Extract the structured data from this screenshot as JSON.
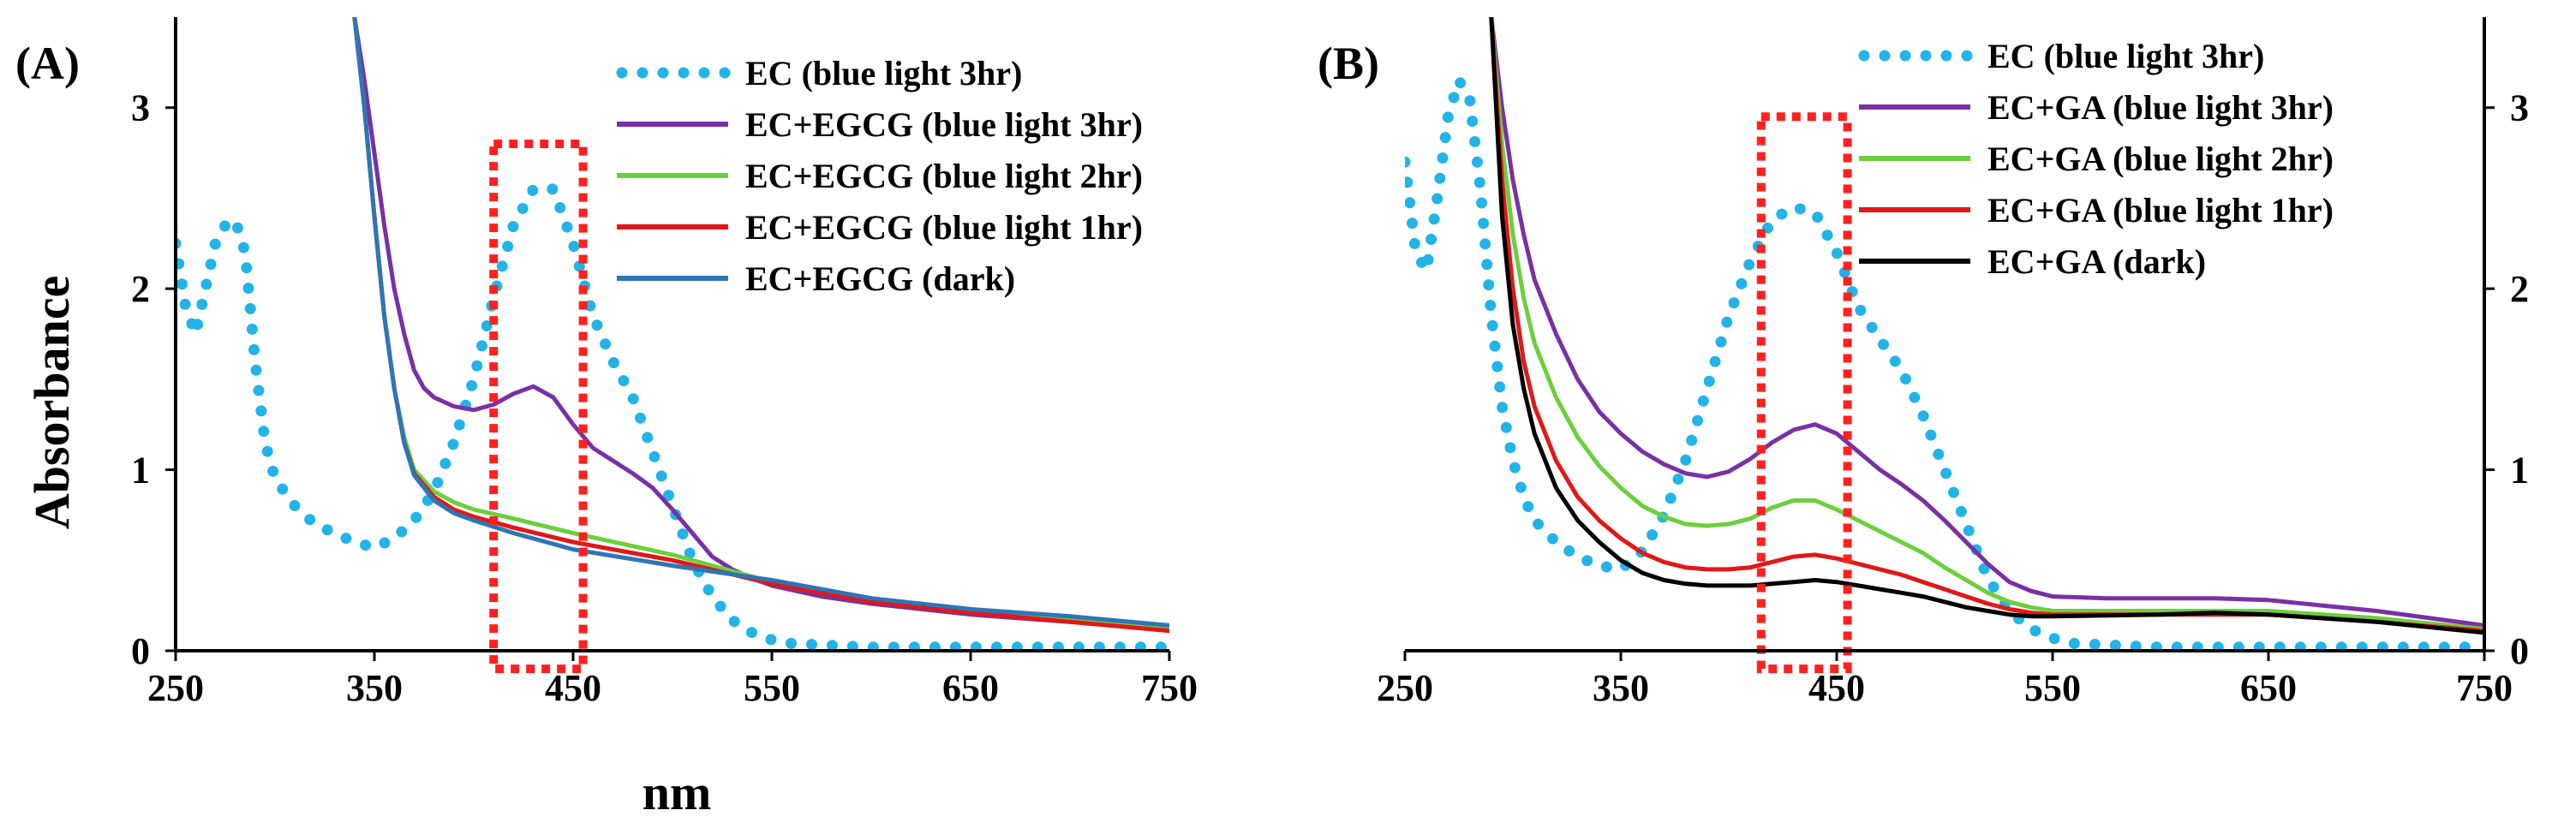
{
  "colors": {
    "ec_3hr": "#22B4E8",
    "blue3hr": "#7A30A5",
    "blue2hr": "#6CCF3C",
    "blue1hr": "#E01818",
    "dark_a": "#2E75B6",
    "dark_b": "#000000",
    "highlight": "#FF2020"
  },
  "chart_data": [
    {
      "type": "line",
      "panel_label": "(A)",
      "title": "",
      "xlabel": "nm",
      "ylabel": "Absorbance",
      "xlim": [
        250,
        750
      ],
      "ylim": [
        0,
        3.5
      ],
      "xticks": [
        "250",
        "350",
        "450",
        "550",
        "650",
        "750"
      ],
      "yticks": [
        "0",
        "1",
        "2",
        "3"
      ],
      "y_axis_side": "left",
      "highlight_x": [
        410,
        455
      ],
      "highlight_y": [
        -0.1,
        2.8
      ],
      "legend_position": "top-right",
      "series": [
        {
          "name": "EC (blue light 3hr)",
          "color_key": "ec_3hr",
          "style": "dotted",
          "x": [
            250,
            255,
            260,
            265,
            270,
            275,
            280,
            285,
            290,
            295,
            300,
            310,
            320,
            330,
            340,
            350,
            360,
            370,
            380,
            390,
            400,
            410,
            420,
            430,
            440,
            450,
            460,
            470,
            480,
            490,
            500,
            510,
            520,
            530,
            540,
            550,
            560,
            580,
            600,
            650,
            700,
            750
          ],
          "y": [
            2.25,
            1.9,
            1.75,
            2.0,
            2.25,
            2.35,
            2.38,
            2.2,
            1.6,
            1.15,
            0.95,
            0.8,
            0.7,
            0.65,
            0.6,
            0.57,
            0.62,
            0.72,
            0.88,
            1.15,
            1.5,
            1.95,
            2.35,
            2.55,
            2.55,
            2.25,
            1.85,
            1.6,
            1.4,
            1.1,
            0.8,
            0.5,
            0.3,
            0.17,
            0.1,
            0.06,
            0.04,
            0.03,
            0.02,
            0.02,
            0.02,
            0.02
          ]
        },
        {
          "name": "EC+EGCG (blue light 3hr)",
          "color_key": "blue3hr",
          "style": "solid",
          "x": [
            340,
            345,
            350,
            355,
            360,
            365,
            370,
            375,
            380,
            390,
            400,
            410,
            420,
            430,
            440,
            450,
            460,
            470,
            480,
            490,
            500,
            510,
            520,
            530,
            540,
            550,
            575,
            600,
            650,
            700,
            750
          ],
          "y": [
            3.5,
            3.15,
            2.75,
            2.35,
            2.0,
            1.75,
            1.55,
            1.45,
            1.4,
            1.35,
            1.33,
            1.36,
            1.42,
            1.46,
            1.4,
            1.25,
            1.12,
            1.05,
            0.98,
            0.9,
            0.78,
            0.65,
            0.52,
            0.45,
            0.4,
            0.36,
            0.3,
            0.26,
            0.2,
            0.16,
            0.13
          ]
        },
        {
          "name": "EC+EGCG (blue light 2hr)",
          "color_key": "blue2hr",
          "style": "solid",
          "x": [
            340,
            345,
            350,
            355,
            360,
            365,
            370,
            380,
            390,
            400,
            420,
            450,
            500,
            550,
            600,
            650,
            700,
            750
          ],
          "y": [
            3.5,
            3.0,
            2.4,
            1.85,
            1.45,
            1.18,
            1.0,
            0.88,
            0.82,
            0.78,
            0.73,
            0.65,
            0.53,
            0.38,
            0.29,
            0.22,
            0.17,
            0.12
          ]
        },
        {
          "name": "EC+EGCG (blue light 1hr)",
          "color_key": "blue1hr",
          "style": "solid",
          "x": [
            340,
            345,
            350,
            355,
            360,
            365,
            370,
            380,
            390,
            400,
            420,
            450,
            500,
            550,
            600,
            650,
            700,
            750
          ],
          "y": [
            3.5,
            3.0,
            2.4,
            1.85,
            1.45,
            1.15,
            0.98,
            0.85,
            0.78,
            0.74,
            0.68,
            0.6,
            0.5,
            0.37,
            0.27,
            0.21,
            0.16,
            0.11
          ]
        },
        {
          "name": "EC+EGCG (dark)",
          "color_key": "dark_a",
          "style": "solid",
          "x": [
            340,
            345,
            350,
            355,
            360,
            365,
            370,
            380,
            390,
            400,
            420,
            450,
            500,
            550,
            600,
            650,
            700,
            750
          ],
          "y": [
            3.5,
            3.0,
            2.4,
            1.85,
            1.45,
            1.15,
            0.97,
            0.83,
            0.76,
            0.72,
            0.65,
            0.56,
            0.47,
            0.39,
            0.29,
            0.23,
            0.19,
            0.14
          ]
        }
      ]
    },
    {
      "type": "line",
      "panel_label": "(B)",
      "title": "",
      "xlabel": "",
      "ylabel": "",
      "xlim": [
        250,
        750
      ],
      "ylim": [
        0,
        3.5
      ],
      "xticks": [
        "250",
        "350",
        "450",
        "550",
        "650",
        "750"
      ],
      "yticks": [
        "0",
        "1",
        "2",
        "3"
      ],
      "y_axis_side": "right",
      "highlight_x": [
        415,
        455
      ],
      "highlight_y": [
        -0.1,
        2.95
      ],
      "legend_position": "top-right",
      "series": [
        {
          "name": "EC (blue light 3hr)",
          "color_key": "ec_3hr",
          "style": "dotted",
          "x": [
            250,
            255,
            260,
            265,
            270,
            275,
            280,
            285,
            290,
            295,
            300,
            305,
            310,
            320,
            330,
            340,
            350,
            360,
            370,
            380,
            390,
            400,
            410,
            420,
            430,
            440,
            450,
            460,
            470,
            480,
            490,
            500,
            510,
            520,
            530,
            540,
            550,
            560,
            580,
            600,
            650,
            700,
            750
          ],
          "y": [
            2.7,
            2.2,
            2.1,
            2.5,
            2.95,
            3.15,
            3.05,
            2.55,
            1.85,
            1.35,
            1.05,
            0.85,
            0.72,
            0.6,
            0.52,
            0.47,
            0.45,
            0.55,
            0.75,
            1.05,
            1.45,
            1.85,
            2.15,
            2.38,
            2.45,
            2.42,
            2.2,
            1.9,
            1.72,
            1.55,
            1.3,
            1.0,
            0.7,
            0.4,
            0.22,
            0.12,
            0.07,
            0.04,
            0.03,
            0.02,
            0.02,
            0.02,
            0.02
          ]
        },
        {
          "name": "EC+GA (blue light 3hr)",
          "color_key": "blue3hr",
          "style": "solid",
          "x": [
            290,
            295,
            300,
            305,
            310,
            320,
            330,
            340,
            350,
            360,
            370,
            380,
            390,
            400,
            410,
            420,
            430,
            440,
            450,
            460,
            470,
            480,
            490,
            500,
            510,
            520,
            530,
            540,
            550,
            575,
            600,
            625,
            650,
            700,
            750
          ],
          "y": [
            3.5,
            3.0,
            2.6,
            2.3,
            2.05,
            1.75,
            1.5,
            1.32,
            1.2,
            1.1,
            1.03,
            0.98,
            0.96,
            0.99,
            1.06,
            1.15,
            1.22,
            1.25,
            1.2,
            1.1,
            1.0,
            0.92,
            0.83,
            0.72,
            0.6,
            0.48,
            0.38,
            0.33,
            0.3,
            0.29,
            0.29,
            0.29,
            0.28,
            0.22,
            0.14
          ]
        },
        {
          "name": "EC+GA (blue light 2hr)",
          "color_key": "blue2hr",
          "style": "solid",
          "x": [
            290,
            295,
            300,
            305,
            310,
            320,
            330,
            340,
            350,
            360,
            370,
            380,
            390,
            400,
            410,
            420,
            430,
            440,
            450,
            460,
            470,
            480,
            490,
            500,
            510,
            520,
            530,
            540,
            550,
            600,
            650,
            700,
            750
          ],
          "y": [
            3.5,
            2.8,
            2.3,
            1.95,
            1.7,
            1.4,
            1.18,
            1.02,
            0.9,
            0.8,
            0.74,
            0.7,
            0.69,
            0.7,
            0.73,
            0.79,
            0.83,
            0.83,
            0.78,
            0.72,
            0.66,
            0.6,
            0.54,
            0.46,
            0.39,
            0.32,
            0.27,
            0.24,
            0.22,
            0.22,
            0.22,
            0.18,
            0.12
          ]
        },
        {
          "name": "EC+GA (blue light 1hr)",
          "color_key": "blue1hr",
          "style": "solid",
          "x": [
            290,
            295,
            300,
            305,
            310,
            320,
            330,
            340,
            350,
            360,
            370,
            380,
            390,
            400,
            410,
            420,
            430,
            440,
            450,
            460,
            470,
            480,
            490,
            500,
            510,
            520,
            530,
            540,
            550,
            600,
            650,
            700,
            750
          ],
          "y": [
            3.5,
            2.6,
            2.0,
            1.6,
            1.35,
            1.05,
            0.85,
            0.72,
            0.62,
            0.54,
            0.49,
            0.46,
            0.45,
            0.45,
            0.46,
            0.49,
            0.52,
            0.53,
            0.51,
            0.48,
            0.45,
            0.42,
            0.38,
            0.34,
            0.3,
            0.26,
            0.23,
            0.21,
            0.2,
            0.2,
            0.2,
            0.16,
            0.11
          ]
        },
        {
          "name": "EC+GA (dark)",
          "color_key": "dark_b",
          "style": "solid",
          "x": [
            290,
            295,
            300,
            305,
            310,
            320,
            330,
            340,
            350,
            360,
            370,
            380,
            390,
            400,
            410,
            420,
            430,
            440,
            450,
            460,
            470,
            480,
            490,
            500,
            510,
            520,
            530,
            540,
            550,
            600,
            625,
            650,
            700,
            750
          ],
          "y": [
            3.5,
            2.4,
            1.8,
            1.45,
            1.2,
            0.9,
            0.72,
            0.6,
            0.5,
            0.43,
            0.39,
            0.37,
            0.36,
            0.36,
            0.36,
            0.37,
            0.38,
            0.39,
            0.38,
            0.36,
            0.34,
            0.32,
            0.3,
            0.27,
            0.24,
            0.22,
            0.2,
            0.19,
            0.19,
            0.2,
            0.21,
            0.2,
            0.16,
            0.1
          ]
        }
      ]
    }
  ]
}
